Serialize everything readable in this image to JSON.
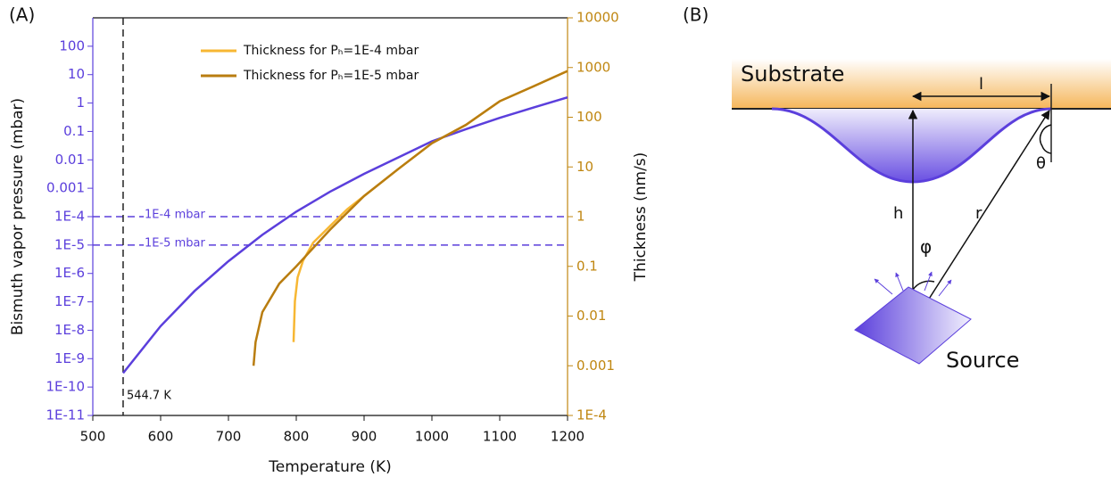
{
  "chart_data": {
    "type": "line",
    "panel_label": "(A)",
    "xlabel": "Temperature (K)",
    "ylabel": "Bismuth vapor pressure (mbar)",
    "y2label": "Thickness (nm/s)",
    "xlim": [
      500,
      1200
    ],
    "xticks": [
      500,
      600,
      700,
      800,
      900,
      1000,
      1100,
      1200
    ],
    "ylim": [
      1e-11,
      1000
    ],
    "yscale": "log",
    "yticks": [
      {
        "value": 1e-11,
        "label": "1E-11"
      },
      {
        "value": 1e-10,
        "label": "1E-10"
      },
      {
        "value": 1e-09,
        "label": "1E-9"
      },
      {
        "value": 1e-08,
        "label": "1E-8"
      },
      {
        "value": 1e-07,
        "label": "1E-7"
      },
      {
        "value": 1e-06,
        "label": "1E-6"
      },
      {
        "value": 1e-05,
        "label": "1E-5"
      },
      {
        "value": 0.0001,
        "label": "1E-4"
      },
      0.001,
      0.01,
      0.1,
      1,
      10,
      100
    ],
    "y2lim": [
      0.0001,
      10000
    ],
    "y2scale": "log",
    "y2ticks": [
      {
        "value": 0.0001,
        "label": "1E-4"
      },
      0.001,
      0.01,
      0.1,
      1,
      10,
      100,
      1000,
      10000
    ],
    "y_color": "#5b3fdc",
    "y2_color": "#c08712",
    "series": [
      {
        "color": "#5b3fdc",
        "x": [
          544.7,
          600,
          650,
          700,
          750,
          800,
          850,
          900,
          950,
          1000,
          1050,
          1100,
          1150,
          1200
        ],
        "values": [
          3.1e-10,
          1.4e-08,
          2.4e-07,
          2.7e-06,
          2.3e-05,
          0.00015,
          0.00076,
          0.0032,
          0.012,
          0.045,
          0.12,
          0.3,
          0.7,
          1.58
        ]
      },
      {
        "name": "Thickness for Pₕ=1E-4 mbar",
        "color": "#f7b733",
        "axis": "y2",
        "x": [
          796,
          798,
          802,
          810,
          825,
          850,
          875,
          900,
          950,
          1000,
          1050,
          1100,
          1150,
          1200
        ],
        "values": [
          0.003,
          0.02,
          0.06,
          0.13,
          0.3,
          0.65,
          1.4,
          2.6,
          9,
          30,
          70,
          210,
          420,
          850
        ]
      },
      {
        "name": "Thickness for Pₕ=1E-5 mbar",
        "color": "#b97d10",
        "axis": "y2",
        "x": [
          737,
          740,
          750,
          775,
          800,
          850,
          900,
          950,
          1000,
          1050,
          1100,
          1150,
          1200
        ],
        "values": [
          0.001,
          0.003,
          0.012,
          0.045,
          0.1,
          0.55,
          2.6,
          9,
          30,
          70,
          210,
          420,
          850
        ]
      }
    ],
    "hlines": [
      {
        "value": 0.0001,
        "label": "1E-4 mbar"
      },
      {
        "value": 1e-05,
        "label": "1E-5 mbar"
      }
    ],
    "hline_color": "#5b3fdc",
    "vline": {
      "value": 544.7,
      "label": "544.7 K"
    },
    "vline_color": "#222222"
  },
  "diagram": {
    "panel_label": "(B)",
    "substrate": "Substrate",
    "source": "Source",
    "symbols": {
      "l": "l",
      "theta": "θ",
      "h": "h",
      "r": "r",
      "phi": "φ"
    }
  }
}
